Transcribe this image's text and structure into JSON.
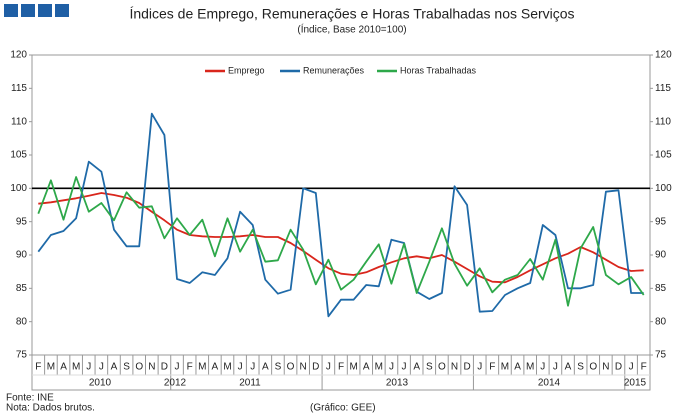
{
  "chart_data": {
    "type": "line",
    "title": "Índices de Emprego, Remunerações e Horas Trabalhadas nos Serviços",
    "subtitle": "(Índice, Base 2010=100)",
    "categories": [
      "F",
      "M",
      "A",
      "M",
      "J",
      "J",
      "A",
      "S",
      "O",
      "N",
      "D",
      "J",
      "F",
      "M",
      "A",
      "M",
      "J",
      "J",
      "A",
      "S",
      "O",
      "N",
      "D",
      "J",
      "F",
      "M",
      "A",
      "M",
      "J",
      "J",
      "A",
      "S",
      "O",
      "N",
      "D",
      "J",
      "F",
      "M",
      "A",
      "M",
      "J",
      "J",
      "A",
      "S",
      "O",
      "N",
      "D",
      "J",
      "F"
    ],
    "year_labels": [
      "2010",
      "2012",
      "2011",
      "2013",
      "2014",
      "2015"
    ],
    "series": [
      {
        "name": "Emprego",
        "color": "#d9261c",
        "values": [
          97.7,
          97.9,
          98.2,
          98.5,
          98.9,
          99.3,
          99.0,
          98.6,
          97.8,
          96.5,
          95.2,
          93.8,
          93.0,
          92.8,
          92.7,
          92.7,
          92.8,
          93.0,
          92.7,
          92.7,
          91.8,
          90.6,
          89.3,
          88.0,
          87.2,
          87.0,
          87.4,
          88.2,
          88.9,
          89.5,
          89.8,
          89.5,
          90.0,
          89.0,
          87.9,
          86.8,
          86.0,
          85.9,
          86.7,
          87.7,
          88.6,
          89.5,
          90.2,
          91.2,
          90.4,
          89.3,
          88.2,
          87.6,
          87.7
        ]
      },
      {
        "name": "Remunerações",
        "color": "#1f6aa8",
        "values": [
          90.5,
          93.0,
          93.6,
          95.5,
          104.0,
          102.5,
          93.8,
          91.3,
          91.3,
          111.2,
          108.0,
          86.4,
          85.8,
          87.4,
          87.0,
          89.5,
          96.5,
          94.5,
          86.3,
          84.2,
          84.8,
          100.0,
          99.3,
          80.8,
          83.3,
          83.3,
          85.5,
          85.3,
          92.3,
          91.8,
          84.5,
          83.4,
          84.3,
          100.3,
          97.5,
          81.5,
          81.6,
          84.0,
          85.0,
          85.8,
          94.5,
          93.0,
          85.0,
          85.0,
          85.5,
          99.5,
          99.7,
          84.3,
          84.3
        ]
      },
      {
        "name": "Horas Trabalhadas",
        "color": "#2ea84a",
        "values": [
          96.2,
          101.2,
          95.3,
          101.7,
          96.5,
          97.8,
          95.2,
          99.4,
          97.1,
          97.3,
          92.5,
          95.5,
          93.0,
          95.3,
          89.8,
          95.5,
          90.5,
          93.8,
          89.0,
          89.2,
          93.8,
          90.8,
          85.6,
          89.3,
          84.8,
          86.3,
          89.0,
          91.6,
          85.7,
          91.7,
          84.3,
          89.0,
          94.0,
          88.7,
          85.4,
          88.0,
          84.4,
          86.3,
          87.0,
          89.4,
          86.3,
          92.3,
          82.4,
          91.0,
          94.2,
          87.0,
          85.6,
          86.7,
          84.0
        ]
      }
    ],
    "reference_line": 100,
    "ylim": [
      75,
      120
    ],
    "yticks": [
      75,
      80,
      85,
      90,
      95,
      100,
      105,
      110,
      115,
      120
    ],
    "legend": "top",
    "source": "Fonte: INE",
    "note": "Nota: Dados brutos.",
    "credit": "(Gráfico: GEE)"
  }
}
